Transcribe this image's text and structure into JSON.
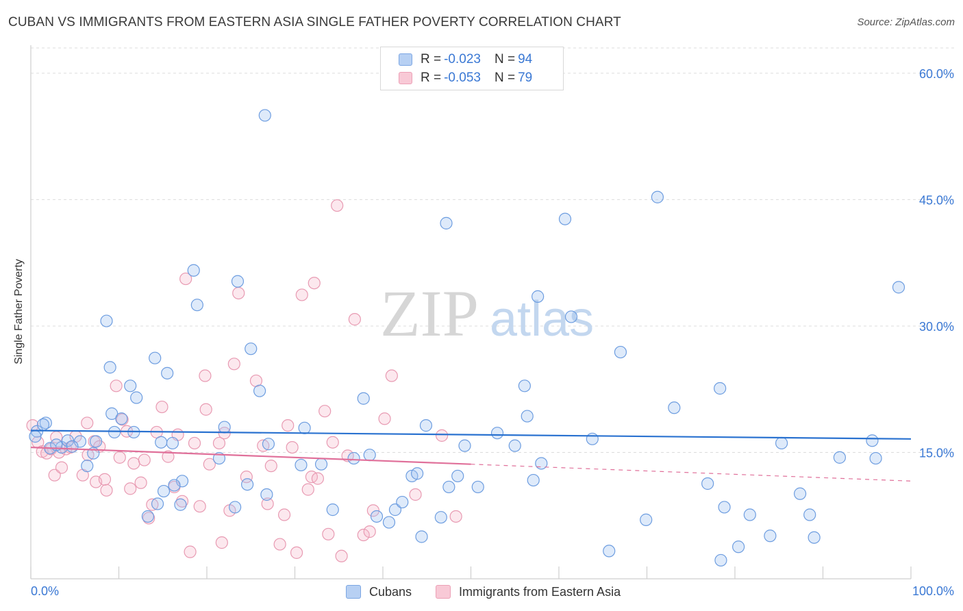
{
  "title": "CUBAN VS IMMIGRANTS FROM EASTERN ASIA SINGLE FATHER POVERTY CORRELATION CHART",
  "source": "Source: ZipAtlas.com",
  "watermark": {
    "part1": "ZIP",
    "part2": "atlas"
  },
  "legend_box": {
    "rows": [
      {
        "r_label": "R =",
        "r_value": "-0.023",
        "n_label": "N =",
        "n_value": "94"
      },
      {
        "r_label": "R =",
        "r_value": "-0.053",
        "n_label": "N =",
        "n_value": "79"
      }
    ]
  },
  "bottom_legend": {
    "series1": "Cubans",
    "series2": "Immigrants from Eastern Asia"
  },
  "colors": {
    "blue_fill": "rgba(160,194,240,0.35)",
    "blue_stroke": "#6d9de0",
    "blue_line": "#2a72d0",
    "pink_fill": "rgba(245,180,200,0.30)",
    "pink_stroke": "#e89ab2",
    "pink_line": "#e0709a",
    "axis_text": "#3a78d4",
    "grid": "#dcdcdc"
  },
  "chart_data": {
    "type": "scatter",
    "title": "CUBAN VS IMMIGRANTS FROM EASTERN ASIA SINGLE FATHER POVERTY CORRELATION CHART",
    "xlabel": "",
    "ylabel": "Single Father Poverty",
    "xlim": [
      0,
      100
    ],
    "ylim": [
      0,
      63
    ],
    "x_tick_labels": [
      "0.0%",
      "100.0%"
    ],
    "y_ticks": [
      15,
      30,
      45,
      60
    ],
    "y_tick_labels": [
      "15.0%",
      "30.0%",
      "45.0%",
      "60.0%"
    ],
    "grid": "horizontal dashed",
    "legend_position": "top-center",
    "series": [
      {
        "name": "Cubans",
        "R": -0.023,
        "N": 94,
        "trend": {
          "x": [
            0,
            100
          ],
          "y": [
            17.6,
            16.6
          ]
        },
        "points": [
          [
            0.7,
            17.5
          ],
          [
            0.5,
            16.9
          ],
          [
            1.7,
            18.5
          ],
          [
            1.4,
            18.3
          ],
          [
            2.2,
            15.5
          ],
          [
            3.5,
            15.6
          ],
          [
            2.9,
            15.9
          ],
          [
            4.2,
            16.4
          ],
          [
            5.6,
            16.3
          ],
          [
            4.7,
            15.7
          ],
          [
            7.4,
            16.3
          ],
          [
            6.4,
            13.4
          ],
          [
            7.1,
            14.9
          ],
          [
            8.6,
            30.6
          ],
          [
            9.2,
            19.6
          ],
          [
            9.5,
            17.4
          ],
          [
            10.3,
            19.0
          ],
          [
            9.0,
            25.1
          ],
          [
            11.3,
            22.9
          ],
          [
            11.7,
            17.4
          ],
          [
            14.8,
            16.2
          ],
          [
            14.1,
            26.2
          ],
          [
            15.5,
            24.4
          ],
          [
            16.1,
            16.1
          ],
          [
            18.5,
            36.6
          ],
          [
            17.2,
            11.6
          ],
          [
            17.0,
            8.8
          ],
          [
            16.3,
            11.1
          ],
          [
            15.1,
            10.4
          ],
          [
            14.4,
            8.9
          ],
          [
            13.3,
            7.4
          ],
          [
            18.9,
            32.5
          ],
          [
            21.4,
            14.3
          ],
          [
            22.0,
            18.0
          ],
          [
            23.5,
            35.3
          ],
          [
            25.0,
            27.3
          ],
          [
            23.2,
            8.5
          ],
          [
            24.6,
            11.2
          ],
          [
            26.0,
            22.3
          ],
          [
            27.0,
            16.0
          ],
          [
            26.8,
            10.0
          ],
          [
            30.7,
            13.5
          ],
          [
            31.1,
            17.9
          ],
          [
            33.0,
            13.6
          ],
          [
            34.3,
            8.2
          ],
          [
            36.7,
            14.3
          ],
          [
            37.8,
            21.4
          ],
          [
            38.5,
            14.7
          ],
          [
            39.3,
            7.4
          ],
          [
            40.7,
            6.7
          ],
          [
            41.4,
            8.2
          ],
          [
            42.2,
            9.1
          ],
          [
            43.3,
            12.2
          ],
          [
            44.4,
            5.0
          ],
          [
            44.9,
            18.2
          ],
          [
            46.6,
            7.3
          ],
          [
            47.2,
            42.2
          ],
          [
            47.5,
            10.9
          ],
          [
            48.5,
            12.2
          ],
          [
            49.3,
            15.8
          ],
          [
            50.8,
            10.9
          ],
          [
            53.0,
            17.3
          ],
          [
            26.6,
            55.0
          ],
          [
            43.9,
            12.5
          ],
          [
            55.0,
            15.8
          ],
          [
            56.1,
            22.9
          ],
          [
            56.4,
            19.3
          ],
          [
            57.1,
            11.7
          ],
          [
            57.6,
            33.5
          ],
          [
            58.0,
            13.7
          ],
          [
            60.7,
            42.7
          ],
          [
            61.4,
            31.1
          ],
          [
            63.8,
            16.6
          ],
          [
            65.7,
            3.3
          ],
          [
            67.0,
            26.9
          ],
          [
            69.9,
            7.0
          ],
          [
            71.2,
            45.3
          ],
          [
            73.1,
            20.3
          ],
          [
            76.9,
            11.3
          ],
          [
            78.4,
            2.2
          ],
          [
            78.3,
            22.6
          ],
          [
            78.8,
            8.5
          ],
          [
            80.4,
            3.8
          ],
          [
            81.7,
            7.6
          ],
          [
            84.0,
            5.1
          ],
          [
            85.3,
            16.1
          ],
          [
            87.4,
            10.1
          ],
          [
            88.5,
            7.6
          ],
          [
            89.0,
            4.9
          ],
          [
            91.9,
            14.4
          ],
          [
            95.6,
            16.4
          ],
          [
            96.0,
            14.3
          ],
          [
            98.6,
            34.6
          ],
          [
            12.0,
            21.5
          ]
        ]
      },
      {
        "name": "Immigrants from Eastern Asia",
        "R": -0.053,
        "N": 79,
        "trend": {
          "x": [
            0,
            50
          ],
          "y": [
            15.6,
            13.6
          ]
        },
        "trend_dashed": {
          "x": [
            50,
            100
          ],
          "y": [
            13.6,
            11.6
          ]
        },
        "points": [
          [
            0.2,
            18.2
          ],
          [
            0.8,
            16.2
          ],
          [
            1.3,
            15.1
          ],
          [
            1.8,
            14.9
          ],
          [
            2.3,
            15.4
          ],
          [
            2.7,
            12.3
          ],
          [
            2.9,
            16.8
          ],
          [
            3.2,
            15.0
          ],
          [
            3.5,
            13.2
          ],
          [
            4.0,
            15.4
          ],
          [
            4.5,
            15.6
          ],
          [
            5.1,
            16.9
          ],
          [
            5.9,
            12.3
          ],
          [
            6.4,
            18.5
          ],
          [
            6.5,
            14.7
          ],
          [
            7.2,
            16.3
          ],
          [
            7.4,
            11.5
          ],
          [
            7.8,
            15.7
          ],
          [
            8.4,
            11.8
          ],
          [
            8.6,
            10.5
          ],
          [
            9.7,
            22.9
          ],
          [
            10.1,
            14.4
          ],
          [
            10.4,
            18.9
          ],
          [
            10.9,
            17.5
          ],
          [
            11.3,
            10.7
          ],
          [
            11.7,
            13.7
          ],
          [
            12.5,
            11.4
          ],
          [
            12.9,
            14.1
          ],
          [
            13.4,
            7.2
          ],
          [
            13.8,
            8.8
          ],
          [
            14.3,
            17.4
          ],
          [
            14.9,
            20.4
          ],
          [
            15.6,
            14.5
          ],
          [
            16.3,
            10.9
          ],
          [
            16.7,
            17.1
          ],
          [
            17.2,
            9.2
          ],
          [
            17.6,
            35.6
          ],
          [
            18.1,
            3.2
          ],
          [
            18.6,
            16.1
          ],
          [
            19.2,
            8.6
          ],
          [
            19.8,
            24.1
          ],
          [
            20.3,
            13.6
          ],
          [
            21.4,
            16.1
          ],
          [
            21.7,
            4.3
          ],
          [
            22.0,
            17.3
          ],
          [
            22.6,
            8.1
          ],
          [
            23.1,
            25.5
          ],
          [
            23.6,
            33.9
          ],
          [
            24.5,
            12.1
          ],
          [
            25.6,
            23.5
          ],
          [
            26.4,
            15.8
          ],
          [
            26.9,
            8.9
          ],
          [
            27.3,
            13.4
          ],
          [
            28.3,
            4.1
          ],
          [
            28.8,
            7.6
          ],
          [
            29.2,
            18.2
          ],
          [
            29.7,
            15.6
          ],
          [
            30.2,
            3.1
          ],
          [
            30.8,
            33.7
          ],
          [
            31.5,
            10.6
          ],
          [
            31.9,
            12.1
          ],
          [
            32.2,
            35.1
          ],
          [
            32.6,
            11.9
          ],
          [
            33.4,
            19.9
          ],
          [
            33.8,
            5.3
          ],
          [
            34.3,
            16.2
          ],
          [
            34.8,
            44.3
          ],
          [
            35.3,
            2.7
          ],
          [
            36.0,
            14.6
          ],
          [
            36.8,
            30.8
          ],
          [
            37.8,
            5.2
          ],
          [
            38.5,
            5.6
          ],
          [
            38.9,
            8.1
          ],
          [
            40.2,
            19.0
          ],
          [
            41.0,
            24.1
          ],
          [
            43.7,
            10.0
          ],
          [
            46.7,
            17.0
          ],
          [
            48.3,
            7.4
          ],
          [
            19.9,
            20.1
          ]
        ]
      }
    ]
  }
}
